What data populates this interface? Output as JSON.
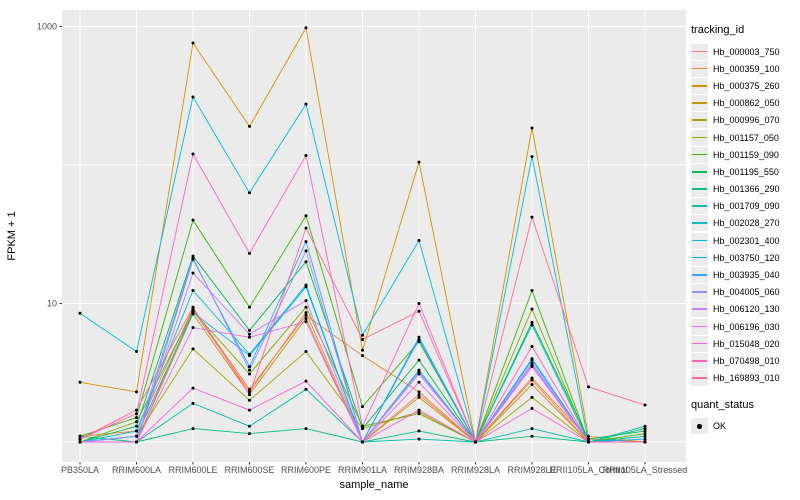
{
  "chart_data": {
    "type": "line",
    "title": "",
    "xlabel": "sample_name",
    "ylabel": "FPKM + 1",
    "y_scale": "log10",
    "ylim": [
      0.95,
      1100
    ],
    "grid": "major-white-on-gray",
    "legend_position": "right",
    "y_ticks": [
      {
        "label": "1000",
        "value": 1000
      },
      {
        "label": "10",
        "value": 10
      }
    ],
    "gridline_values": [
      1,
      10,
      100,
      1000
    ],
    "categories": [
      "PB350LA",
      "RRIM600LA",
      "RRIM600LE",
      "RRIM600SE",
      "RRIM600PE",
      "RRIM901LA",
      "RRIM928BA",
      "RRIM928LA",
      "RRIM928LE",
      "RRII105LA_Control",
      "RRII105LA_Stressed"
    ],
    "series": [
      {
        "name": "Hb_000003_750",
        "color": "#F8766D",
        "values": [
          1.0,
          1.0,
          9.0,
          2.3,
          8.6,
          1.0,
          2.2,
          1.0,
          2.8,
          1.0,
          1.0
        ]
      },
      {
        "name": "Hb_000359_100",
        "color": "#EA8331",
        "values": [
          1.1,
          1.2,
          9.2,
          2.4,
          8.2,
          4.2,
          2.3,
          1.0,
          2.9,
          1.05,
          1.0
        ]
      },
      {
        "name": "Hb_000375_260",
        "color": "#D89000",
        "values": [
          2.7,
          2.3,
          760,
          190,
          980,
          4.6,
          105,
          1.0,
          185,
          1.1,
          1.0
        ]
      },
      {
        "name": "Hb_000862_050",
        "color": "#C09B00",
        "values": [
          1.0,
          1.0,
          8.4,
          2.2,
          7.8,
          1.0,
          2.1,
          1.0,
          2.6,
          1.0,
          1.0
        ]
      },
      {
        "name": "Hb_000996_070",
        "color": "#A3A500",
        "values": [
          1.0,
          1.1,
          4.7,
          2.0,
          4.5,
          1.25,
          1.65,
          1.0,
          2.1,
          1.0,
          1.0
        ]
      },
      {
        "name": "Hb_001157_050",
        "color": "#7CAE00",
        "values": [
          1.0,
          1.4,
          8.8,
          3.1,
          9.4,
          1.3,
          1.6,
          1.0,
          9.1,
          1.0,
          1.1
        ]
      },
      {
        "name": "Hb_001159_090",
        "color": "#39B600",
        "values": [
          1.1,
          1.5,
          40,
          9.4,
          43,
          1.8,
          5.3,
          1.0,
          12.4,
          1.0,
          1.15
        ]
      },
      {
        "name": "Hb_001195_550",
        "color": "#00BB4E",
        "values": [
          1.0,
          1.3,
          22,
          6.4,
          20,
          1.25,
          3.9,
          1.0,
          7.3,
          1.05,
          1.2
        ]
      },
      {
        "name": "Hb_001366_290",
        "color": "#00BF7D",
        "values": [
          1.1,
          1.0,
          1.25,
          1.15,
          1.25,
          1.0,
          1.2,
          1.0,
          1.1,
          1.0,
          1.25
        ]
      },
      {
        "name": "Hb_001709_090",
        "color": "#00C1A3",
        "values": [
          1.0,
          1.0,
          1.9,
          1.3,
          2.4,
          1.0,
          1.05,
          1.0,
          1.25,
          1.0,
          1.3
        ]
      },
      {
        "name": "Hb_002028_270",
        "color": "#00BFC4",
        "values": [
          1.0,
          1.2,
          12.4,
          4.3,
          13.6,
          1.0,
          3.3,
          1.0,
          7.0,
          1.0,
          1.1
        ]
      },
      {
        "name": "Hb_002301_400",
        "color": "#00BAE0",
        "values": [
          8.5,
          4.5,
          310,
          63,
          275,
          5.9,
          28.5,
          1.0,
          115,
          1.0,
          1.0
        ]
      },
      {
        "name": "Hb_003750_120",
        "color": "#00B0F6",
        "values": [
          1.0,
          1.1,
          8.6,
          4.2,
          13.2,
          1.0,
          5.7,
          1.0,
          4.0,
          1.0,
          1.05
        ]
      },
      {
        "name": "Hb_003935_040",
        "color": "#35A2FF",
        "values": [
          1.0,
          1.0,
          20.8,
          3.5,
          28,
          1.0,
          5.5,
          1.0,
          3.9,
          1.0,
          1.0
        ]
      },
      {
        "name": "Hb_004005_060",
        "color": "#9590FF",
        "values": [
          1.0,
          1.1,
          21.3,
          3.3,
          24,
          1.0,
          3.2,
          1.0,
          3.7,
          1.0,
          1.0
        ]
      },
      {
        "name": "Hb_006120_130",
        "color": "#C77CFF",
        "values": [
          1.0,
          1.0,
          16.6,
          6.0,
          10.5,
          1.0,
          3.1,
          1.0,
          3.6,
          1.0,
          1.0
        ]
      },
      {
        "name": "Hb_006196_030",
        "color": "#E76BF3",
        "values": [
          1.0,
          1.0,
          6.7,
          5.7,
          7.4,
          1.0,
          2.7,
          1.0,
          3.5,
          1.0,
          1.0
        ]
      },
      {
        "name": "Hb_015048_020",
        "color": "#FA62DB",
        "values": [
          1.0,
          1.0,
          2.45,
          1.7,
          2.75,
          1.0,
          1.7,
          1.0,
          1.75,
          1.0,
          1.0
        ]
      },
      {
        "name": "Hb_070498_010",
        "color": "#FF62BC",
        "values": [
          1.05,
          1.6,
          120,
          23,
          117,
          1.3,
          10,
          1.0,
          4.9,
          1.0,
          1.0
        ]
      },
      {
        "name": "Hb_169893_010",
        "color": "#FF6A98",
        "values": [
          1.05,
          1.7,
          9.4,
          2.2,
          35,
          5.5,
          8.8,
          1.0,
          42,
          2.5,
          1.85
        ]
      }
    ],
    "point_marker": {
      "shape": "filled-dot",
      "color": "#000000"
    }
  },
  "legend": {
    "tracking_title": "tracking_id",
    "quant_title": "quant_status",
    "quant_items": [
      {
        "label": "OK"
      }
    ]
  },
  "style": {
    "panel_bg": "#EBEBEB",
    "gridline_color": "#FFFFFF",
    "tick_label_color": "#4D4D4D",
    "axis_title_color": "#000000"
  }
}
